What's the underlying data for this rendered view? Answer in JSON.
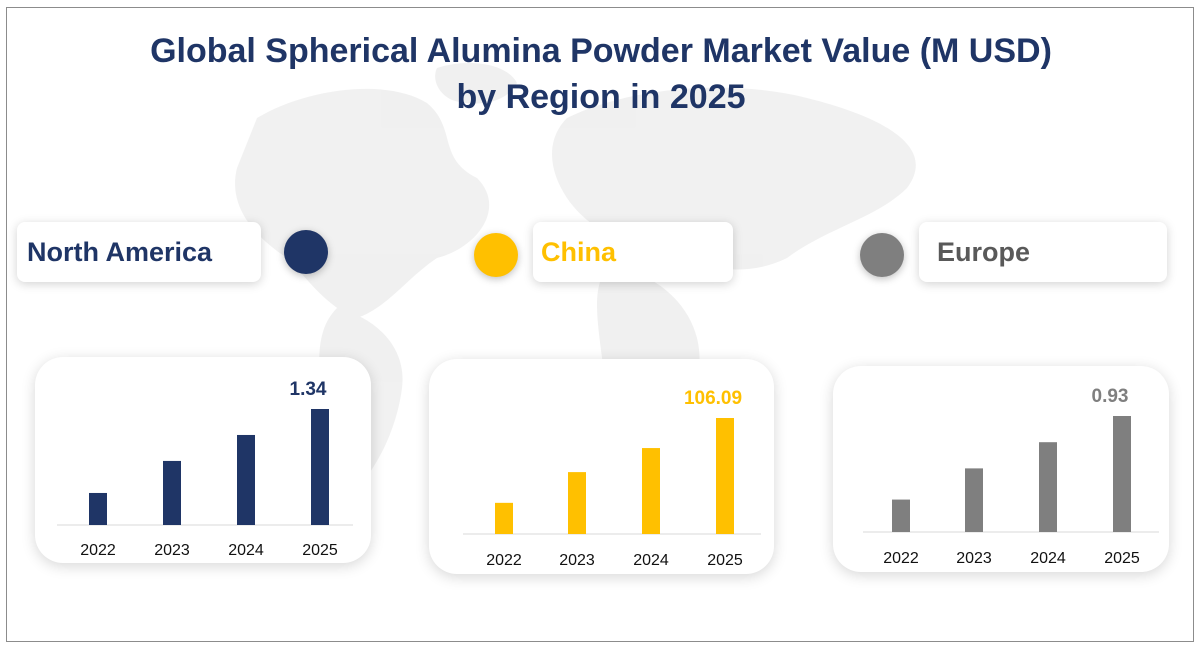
{
  "title_line1": "Global Spherical Alumina Powder Market Value (M USD)",
  "title_line2": "by Region in 2025",
  "chart_data": [
    {
      "type": "bar",
      "region": "North America",
      "color": "#1f3566",
      "categories": [
        "2022",
        "2023",
        "2024",
        "2025"
      ],
      "values": [
        0.37,
        0.74,
        1.04,
        1.34
      ],
      "labeled_value": "1.34",
      "ylim": [
        0,
        1.34
      ],
      "grid": false
    },
    {
      "type": "bar",
      "region": "China",
      "color": "#ffc000",
      "categories": [
        "2022",
        "2023",
        "2024",
        "2025"
      ],
      "values": [
        28.5,
        56.6,
        78.6,
        106.09
      ],
      "labeled_value": "106.09",
      "ylim": [
        0,
        106.09
      ],
      "grid": false
    },
    {
      "type": "bar",
      "region": "Europe",
      "color": "#7f7f7f",
      "categories": [
        "2022",
        "2023",
        "2024",
        "2025"
      ],
      "values": [
        0.26,
        0.51,
        0.72,
        0.93
      ],
      "labeled_value": "0.93",
      "ylim": [
        0,
        0.93
      ],
      "grid": false
    }
  ]
}
